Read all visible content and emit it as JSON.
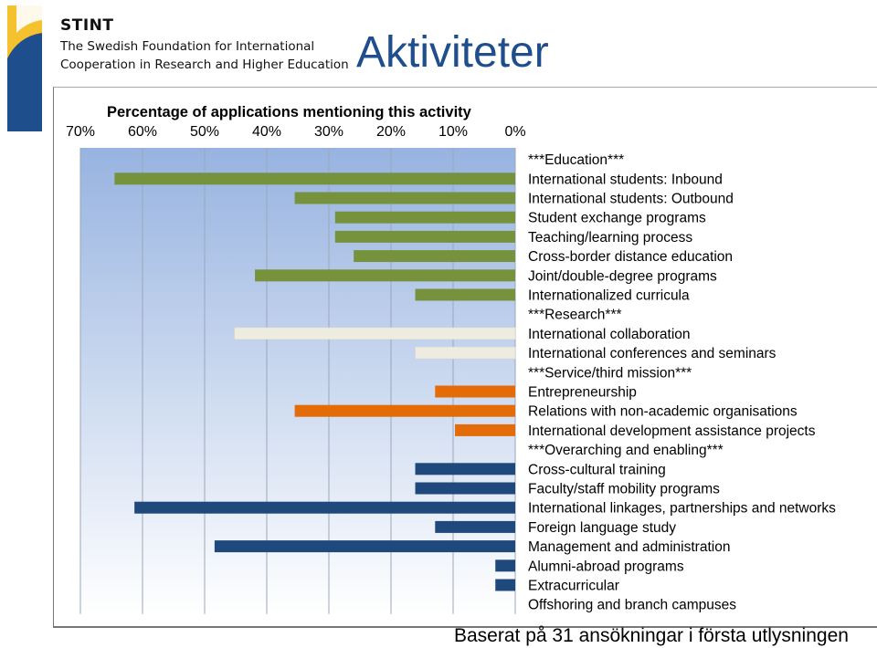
{
  "header": {
    "logo_name": "STINT",
    "logo_line1": "The Swedish Foundation for International",
    "logo_line2": "Cooperation in Research and Higher Education",
    "slide_title": "Aktiviteter"
  },
  "footer": {
    "note": "Baserat på 31 ansökningar i första utlysningen"
  },
  "colors": {
    "education": "#76923c",
    "research": "#eeece1",
    "service": "#e36c09",
    "overarching": "#1f497d",
    "plot_bg_top": "#97b3e0",
    "plot_bg_bottom": "#ffffff",
    "title_blue": "#1f4e8c"
  },
  "chart_data": {
    "type": "bar",
    "orientation": "horizontal",
    "x_direction": "reversed",
    "title": "Percentage of applications mentioning this activity",
    "xlim": [
      0,
      70
    ],
    "x_ticks": [
      "70%",
      "60%",
      "50%",
      "40%",
      "30%",
      "20%",
      "10%",
      "0%"
    ],
    "x_axis_position": "top",
    "grid": true,
    "categories": [
      "***Education***",
      "International students: Inbound",
      "International students: Outbound",
      "Student exchange programs",
      "Teaching/learning process",
      "Cross-border distance education",
      "Joint/double-degree programs",
      "Internationalized curricula",
      "***Research***",
      "International collaboration",
      "International conferences and seminars",
      "***Service/third mission***",
      "Entrepreneurship",
      "Relations with non-academic organisations",
      "International development assistance projects",
      "***Overarching and enabling***",
      "Cross-cultural training",
      "Faculty/staff mobility programs",
      "International linkages, partnerships and networks",
      "Foreign language study",
      "Management and administration",
      "Alumni-abroad programs",
      "Extracurricular",
      "Offshoring and branch campuses"
    ],
    "values": [
      null,
      64.5,
      35.5,
      29,
      29,
      26,
      41.9,
      16.1,
      null,
      45.2,
      16.1,
      null,
      12.9,
      35.5,
      9.7,
      null,
      16.1,
      16.1,
      61.3,
      12.9,
      48.4,
      3.2,
      3.2,
      0
    ],
    "groups": [
      "header",
      "education",
      "education",
      "education",
      "education",
      "education",
      "education",
      "education",
      "header",
      "research",
      "research",
      "header",
      "service",
      "service",
      "service",
      "header",
      "overarching",
      "overarching",
      "overarching",
      "overarching",
      "overarching",
      "overarching",
      "overarching",
      "overarching"
    ]
  }
}
